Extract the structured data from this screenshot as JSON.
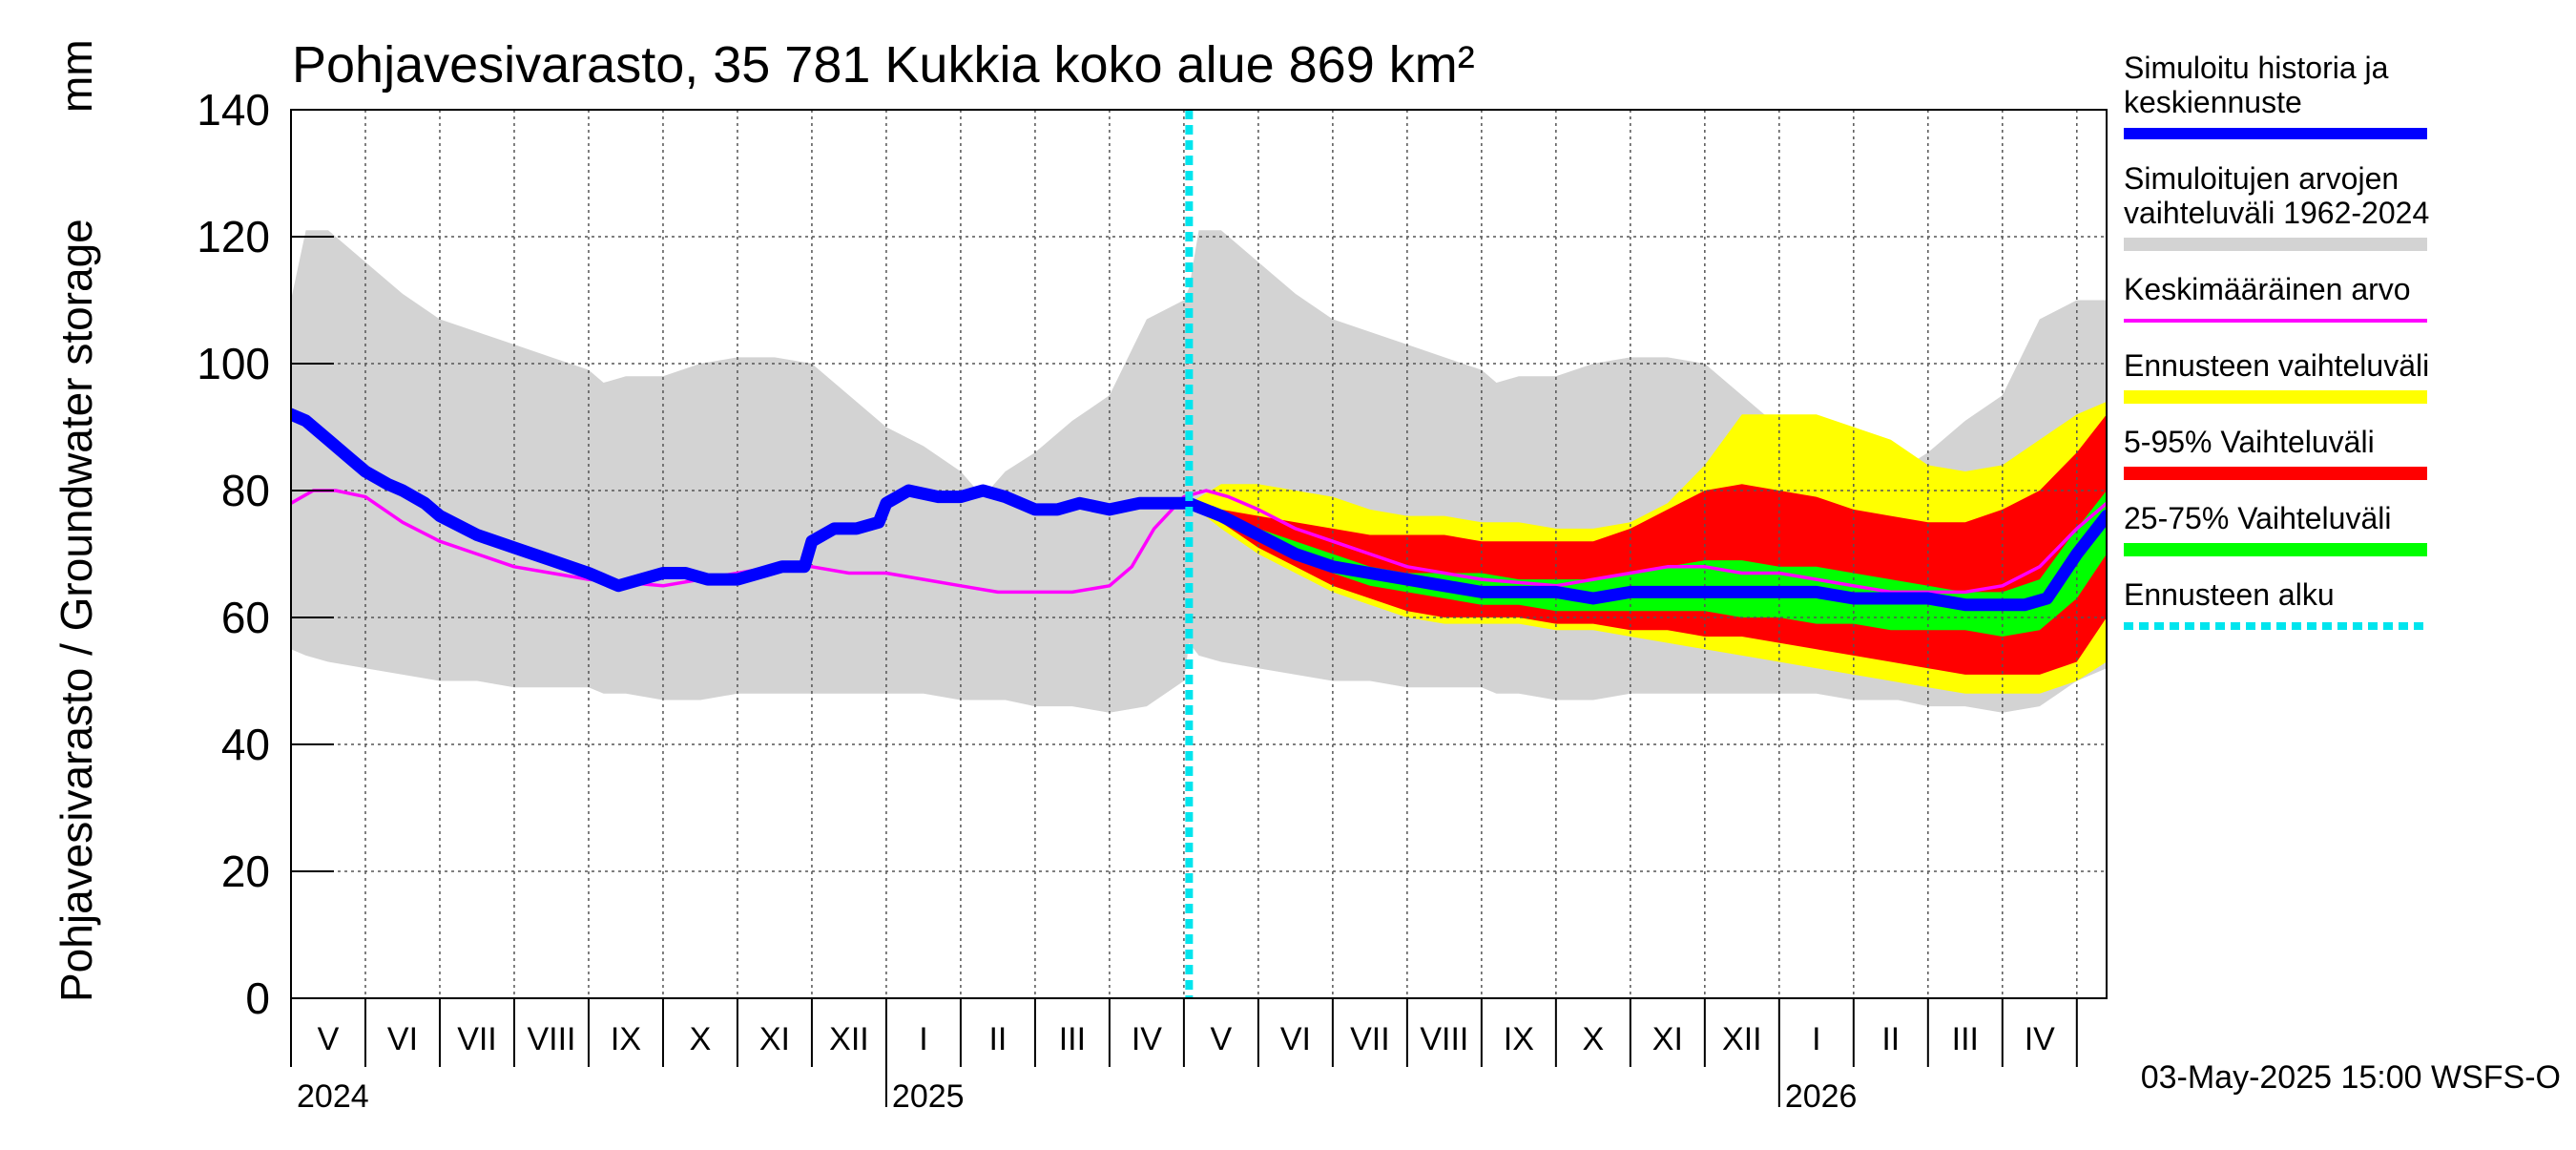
{
  "chart_data": {
    "type": "area",
    "title": "Pohjavesivarasto, 35 781 Kukkia koko alue 869 km²",
    "ylabel": "Pohjavesivarasto / Groundwater storage",
    "yunit": "mm",
    "ylim": [
      0,
      140
    ],
    "yticks": [
      0,
      20,
      40,
      60,
      80,
      100,
      120,
      140
    ],
    "x_range_months": [
      0,
      24.4
    ],
    "forecast_start_month": 12.07,
    "months": [
      {
        "label": "V",
        "pos": 0.5
      },
      {
        "label": "VI",
        "pos": 1.5
      },
      {
        "label": "VII",
        "pos": 2.5
      },
      {
        "label": "VIII",
        "pos": 3.5
      },
      {
        "label": "IX",
        "pos": 4.5
      },
      {
        "label": "X",
        "pos": 5.5
      },
      {
        "label": "XI",
        "pos": 6.5
      },
      {
        "label": "XII",
        "pos": 7.5
      },
      {
        "label": "I",
        "pos": 8.5
      },
      {
        "label": "II",
        "pos": 9.5
      },
      {
        "label": "III",
        "pos": 10.5
      },
      {
        "label": "IV",
        "pos": 11.5
      },
      {
        "label": "V",
        "pos": 12.5
      },
      {
        "label": "VI",
        "pos": 13.5
      },
      {
        "label": "VII",
        "pos": 14.5
      },
      {
        "label": "VIII",
        "pos": 15.5
      },
      {
        "label": "IX",
        "pos": 16.5
      },
      {
        "label": "X",
        "pos": 17.5
      },
      {
        "label": "XI",
        "pos": 18.5
      },
      {
        "label": "XII",
        "pos": 19.5
      },
      {
        "label": "I",
        "pos": 20.5
      },
      {
        "label": "II",
        "pos": 21.5
      },
      {
        "label": "III",
        "pos": 22.5
      },
      {
        "label": "IV",
        "pos": 23.5
      }
    ],
    "years": [
      {
        "label": "2024",
        "pos": 0
      },
      {
        "label": "2025",
        "pos": 8
      },
      {
        "label": "2026",
        "pos": 20
      }
    ],
    "year_boundaries": [
      8,
      20
    ],
    "series": {
      "simulated_range": {
        "name": "Simuloitujen arvojen vaihteluväli 1962-2024",
        "color": "#d3d3d3",
        "x": [
          0,
          0.2,
          0.5,
          1,
          1.5,
          2,
          2.5,
          3,
          3.5,
          4,
          4.2,
          4.5,
          5,
          5.5,
          6,
          6.5,
          7,
          7.5,
          8,
          8.5,
          9,
          9.3,
          9.6,
          10,
          10.5,
          11,
          11.5,
          12,
          12.07,
          12.2,
          12.5,
          13,
          13.5,
          14,
          14.5,
          15,
          15.5,
          16,
          16.2,
          16.5,
          17,
          17.5,
          18,
          18.5,
          19,
          19.5,
          20,
          20.5,
          21,
          21.3,
          21.6,
          22,
          22.5,
          23,
          23.5,
          24,
          24.4
        ],
        "upper": [
          110,
          121,
          121,
          116,
          111,
          107,
          105,
          103,
          101,
          99,
          97,
          98,
          98,
          100,
          101,
          101,
          100,
          95,
          90,
          87,
          83,
          79,
          83,
          86,
          91,
          95,
          107,
          110,
          112,
          121,
          121,
          116,
          111,
          107,
          105,
          103,
          101,
          99,
          97,
          98,
          98,
          100,
          101,
          101,
          100,
          95,
          90,
          87,
          83,
          79,
          83,
          86,
          91,
          95,
          107,
          110,
          110
        ],
        "lower": [
          55,
          54,
          53,
          52,
          51,
          50,
          50,
          49,
          49,
          49,
          48,
          48,
          47,
          47,
          48,
          48,
          48,
          48,
          48,
          48,
          47,
          47,
          47,
          46,
          46,
          45,
          46,
          50,
          56,
          54,
          53,
          52,
          51,
          50,
          50,
          49,
          49,
          49,
          48,
          48,
          47,
          47,
          48,
          48,
          48,
          48,
          48,
          48,
          47,
          47,
          47,
          46,
          46,
          45,
          46,
          50,
          52
        ]
      },
      "forecast_range": {
        "name": "Ennusteen vaihteluväli",
        "color": "#ffff00",
        "x": [
          12.07,
          12.5,
          13,
          13.5,
          14,
          14.5,
          15,
          15.5,
          16,
          16.5,
          17,
          17.5,
          18,
          18.5,
          19,
          19.5,
          20,
          20.5,
          21,
          21.5,
          22,
          22.5,
          23,
          23.5,
          24,
          24.4
        ],
        "upper": [
          78,
          81,
          81,
          80,
          79,
          77,
          76,
          76,
          75,
          75,
          74,
          74,
          75,
          78,
          84,
          92,
          92,
          92,
          90,
          88,
          84,
          83,
          84,
          88,
          92,
          94
        ],
        "lower": [
          78,
          74,
          70,
          67,
          64,
          62,
          60,
          59,
          59,
          59,
          58,
          58,
          57,
          56,
          55,
          54,
          53,
          52,
          51,
          50,
          49,
          48,
          48,
          48,
          50,
          53
        ]
      },
      "range_5_95": {
        "name": "5-95% Vaihteluväli",
        "color": "#ff0000",
        "x": [
          12.07,
          12.5,
          13,
          13.5,
          14,
          14.5,
          15,
          15.5,
          16,
          16.5,
          17,
          17.5,
          18,
          18.5,
          19,
          19.5,
          20,
          20.5,
          21,
          21.5,
          22,
          22.5,
          23,
          23.5,
          24,
          24.4
        ],
        "upper": [
          78,
          77,
          76,
          75,
          74,
          73,
          73,
          73,
          72,
          72,
          72,
          72,
          74,
          77,
          80,
          81,
          80,
          79,
          77,
          76,
          75,
          75,
          77,
          80,
          86,
          92
        ],
        "lower": [
          78,
          75,
          71,
          68,
          65,
          63,
          61,
          60,
          60,
          60,
          59,
          59,
          58,
          58,
          57,
          57,
          56,
          55,
          54,
          53,
          52,
          51,
          51,
          51,
          53,
          60
        ]
      },
      "range_25_75": {
        "name": "25-75% Vaihteluväli",
        "color": "#00ff00",
        "x": [
          12.07,
          12.5,
          13,
          13.5,
          14,
          14.5,
          15,
          15.5,
          16,
          16.5,
          17,
          17.5,
          18,
          18.5,
          19,
          19.5,
          20,
          20.5,
          21,
          21.5,
          22,
          22.5,
          23,
          23.5,
          24,
          24.4
        ],
        "upper": [
          78,
          76,
          74,
          72,
          70,
          68,
          67,
          67,
          67,
          66,
          66,
          66,
          67,
          68,
          69,
          69,
          68,
          68,
          67,
          66,
          65,
          64,
          64,
          66,
          74,
          80
        ],
        "lower": [
          78,
          75,
          72,
          69,
          67,
          65,
          64,
          63,
          62,
          62,
          61,
          61,
          61,
          61,
          61,
          60,
          60,
          59,
          59,
          58,
          58,
          58,
          57,
          58,
          63,
          70
        ]
      },
      "mean": {
        "name": "Keskimääräinen arvo",
        "color": "#ff00ff",
        "x": [
          0,
          0.3,
          0.6,
          1,
          1.5,
          2,
          2.5,
          3,
          3.5,
          4,
          4.5,
          5,
          5.5,
          6,
          6.5,
          7,
          7.5,
          8,
          8.5,
          9,
          9.5,
          10,
          10.5,
          11,
          11.3,
          11.6,
          12,
          12.3,
          12.6,
          13,
          13.5,
          14,
          14.5,
          15,
          15.5,
          16,
          16.5,
          17,
          17.5,
          18,
          18.5,
          19,
          19.5,
          20,
          20.5,
          21,
          21.5,
          22,
          22.5,
          23,
          23.5,
          24,
          24.4
        ],
        "y": [
          78,
          80,
          80,
          79,
          75,
          72,
          70,
          68,
          67,
          66,
          65.5,
          65,
          66,
          67,
          68,
          68,
          67,
          67,
          66,
          65,
          64,
          64,
          64,
          65,
          68,
          74,
          79,
          80,
          79,
          77,
          74,
          72,
          70,
          68,
          67,
          66,
          65.5,
          65,
          66,
          67,
          68,
          68,
          67,
          67,
          66,
          65,
          64,
          64,
          64,
          65,
          68,
          74,
          78
        ]
      },
      "simulated_history": {
        "name": "Simuloitu historia ja keskiennuste",
        "color": "#0000ff",
        "x": [
          0,
          0.2,
          0.5,
          0.8,
          1,
          1.3,
          1.5,
          1.8,
          2,
          2.5,
          3,
          3.5,
          4,
          4.4,
          4.7,
          5,
          5.3,
          5.6,
          6,
          6.3,
          6.6,
          6.9,
          7,
          7.3,
          7.6,
          7.9,
          8,
          8.3,
          8.7,
          9,
          9.3,
          9.6,
          10,
          10.3,
          10.6,
          11,
          11.4,
          11.7,
          12,
          12.07,
          12.5,
          13,
          13.5,
          14,
          14.5,
          15,
          15.5,
          16,
          16.5,
          17,
          17.5,
          18,
          18.5,
          19,
          19.5,
          20,
          20.5,
          21,
          21.5,
          22,
          22.5,
          23,
          23.3,
          23.6,
          24,
          24.4
        ],
        "y": [
          92,
          91,
          88,
          85,
          83,
          81,
          80,
          78,
          76,
          73,
          71,
          69,
          67,
          65,
          66,
          67,
          67,
          66,
          66,
          67,
          68,
          68,
          72,
          74,
          74,
          75,
          78,
          80,
          79,
          79,
          80,
          79,
          77,
          77,
          78,
          77,
          78,
          78,
          78,
          78,
          76,
          73,
          70,
          68,
          67,
          66,
          65,
          64,
          64,
          64,
          63,
          64,
          64,
          64,
          64,
          64,
          64,
          63,
          63,
          63,
          62,
          62,
          62,
          63,
          70,
          76
        ]
      }
    },
    "legend": [
      {
        "key": "simulated_history",
        "lines": [
          "Simuloitu historia ja",
          "keskiennuste"
        ],
        "color": "#0000ff",
        "style": "thick"
      },
      {
        "key": "simulated_range",
        "lines": [
          "Simuloitujen arvojen",
          "vaihteluväli 1962-2024"
        ],
        "color": "#d3d3d3",
        "style": "band"
      },
      {
        "key": "mean",
        "lines": [
          "Keskimääräinen arvo"
        ],
        "color": "#ff00ff",
        "style": "thin"
      },
      {
        "key": "forecast_range",
        "lines": [
          "Ennusteen vaihteluväli"
        ],
        "color": "#ffff00",
        "style": "band"
      },
      {
        "key": "range_5_95",
        "lines": [
          "5-95% Vaihteluväli"
        ],
        "color": "#ff0000",
        "style": "band"
      },
      {
        "key": "range_25_75",
        "lines": [
          "25-75% Vaihteluväli"
        ],
        "color": "#00ff00",
        "style": "band"
      },
      {
        "key": "forecast_start",
        "lines": [
          "Ennusteen alku"
        ],
        "color": "#00e5ee",
        "style": "dotted"
      }
    ],
    "footer": "03-May-2025 15:00 WSFS-O"
  }
}
